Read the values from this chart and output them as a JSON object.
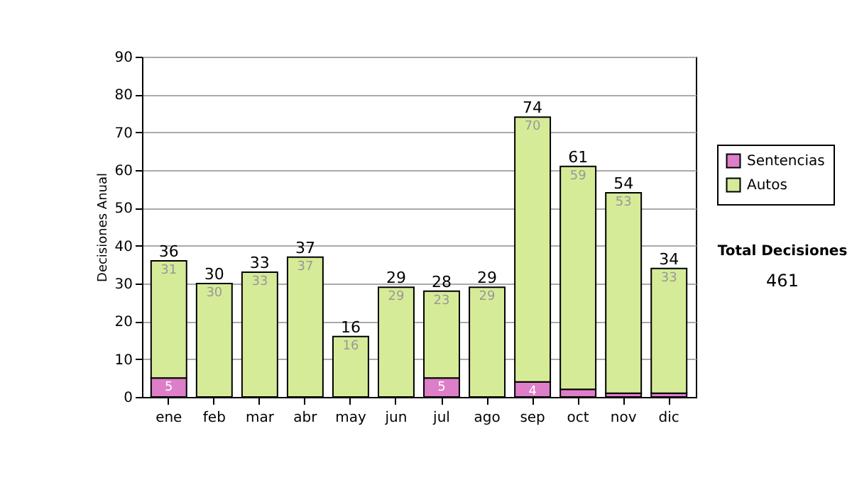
{
  "chart_data": {
    "type": "bar",
    "stacked": true,
    "categories": [
      "ene",
      "feb",
      "mar",
      "abr",
      "may",
      "jun",
      "jul",
      "ago",
      "sep",
      "oct",
      "nov",
      "dic"
    ],
    "ylabel": "Decisiones Anual",
    "series": [
      {
        "name": "Sentencias",
        "color": "#dd7ec8",
        "values": [
          5,
          0,
          0,
          0,
          0,
          0,
          5,
          0,
          4,
          2,
          1,
          1
        ],
        "value_labels": [
          "5",
          null,
          null,
          null,
          null,
          null,
          "5",
          null,
          "4",
          null,
          null,
          null
        ]
      },
      {
        "name": "Autos",
        "color": "#d6eb98",
        "values": [
          31,
          30,
          33,
          37,
          16,
          29,
          23,
          29,
          70,
          59,
          53,
          33
        ],
        "value_labels": [
          "31",
          "30",
          "33",
          "37",
          "16",
          "29",
          "23",
          "29",
          "70",
          "59",
          "53",
          "33"
        ]
      }
    ],
    "totals": [
      "36",
      "30",
      "33",
      "37",
      "16",
      "29",
      "28",
      "29",
      "74",
      "61",
      "54",
      "34"
    ],
    "ylim": [
      0,
      90
    ],
    "yticks": [
      0,
      10,
      20,
      30,
      40,
      50,
      60,
      70,
      80,
      90
    ],
    "grid": "y",
    "legend": "right",
    "annotations": [
      "Total Decisiones",
      "461"
    ]
  }
}
